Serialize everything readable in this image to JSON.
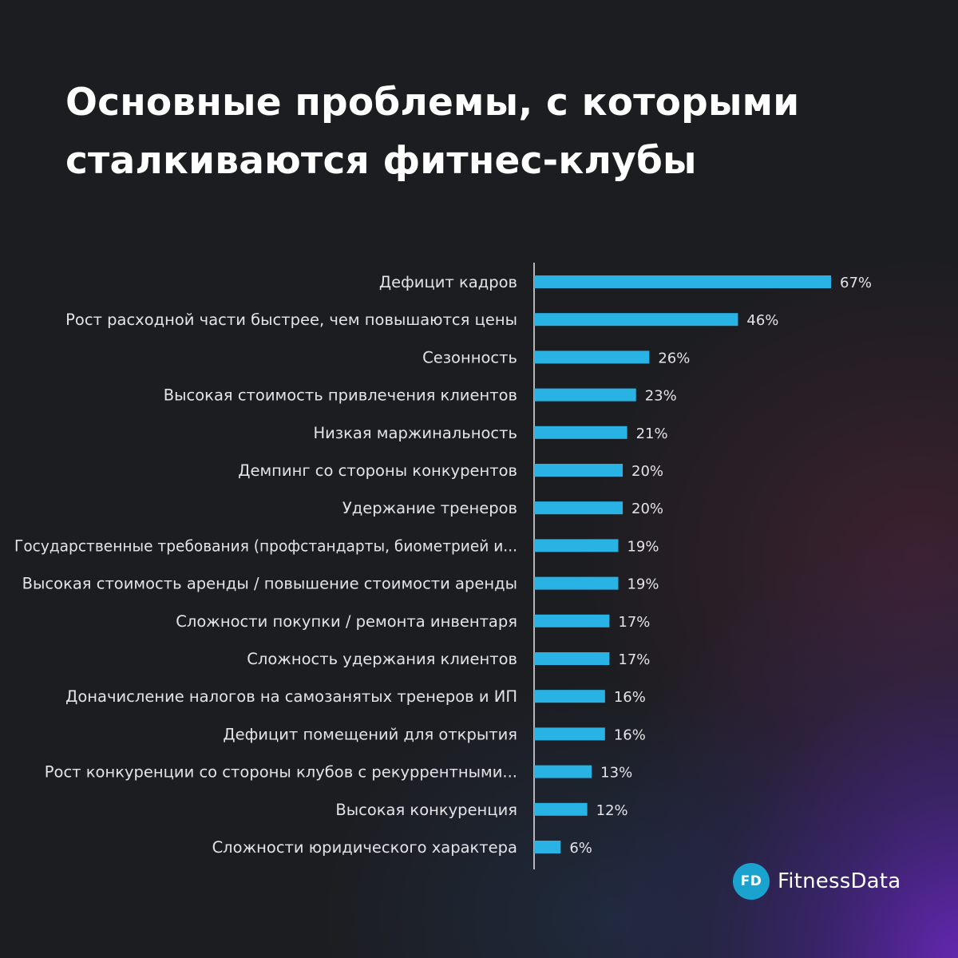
{
  "chart_data": {
    "type": "bar",
    "orientation": "horizontal",
    "title_lines": [
      "Основные проблемы, с которыми",
      "сталкиваются фитнес-клубы"
    ],
    "categories": [
      "Дефицит кадров",
      "Рост расходной части быстрее, чем повышаются цены",
      "Сезонность",
      "Высокая стоимость привлечения клиентов",
      "Низкая маржинальность",
      "Демпинг со стороны конкурентов",
      "Удержание тренеров",
      "Государственные требования (профстандарты, биометрией и...",
      "Высокая стоимость аренды / повышение стоимости аренды",
      "Сложности покупки / ремонта инвентаря",
      "Сложность удержания клиентов",
      "Доначисление налогов на самозанятых тренеров и ИП",
      "Дефицит помещений для открытия",
      "Рост конкуренции со стороны клубов с рекуррентными...",
      "Высокая конкуренция",
      "Сложности юридического характера"
    ],
    "values": [
      67,
      46,
      26,
      23,
      21,
      20,
      20,
      19,
      19,
      17,
      17,
      16,
      16,
      13,
      12,
      6
    ],
    "value_labels": [
      "67%",
      "46%",
      "26%",
      "23%",
      "21%",
      "20%",
      "20%",
      "19%",
      "19%",
      "17%",
      "17%",
      "16%",
      "16%",
      "13%",
      "12%",
      "6%"
    ],
    "unit": "%",
    "xlim": [
      0,
      67
    ],
    "grid": false,
    "legend": "none",
    "bar_color": "#29b3e4",
    "axis_color": "#e8e8ea"
  },
  "logo": {
    "badge": "FD",
    "text": "FitnessData",
    "badge_color": "#1aa3cf"
  },
  "background_color": "#1c1d21"
}
